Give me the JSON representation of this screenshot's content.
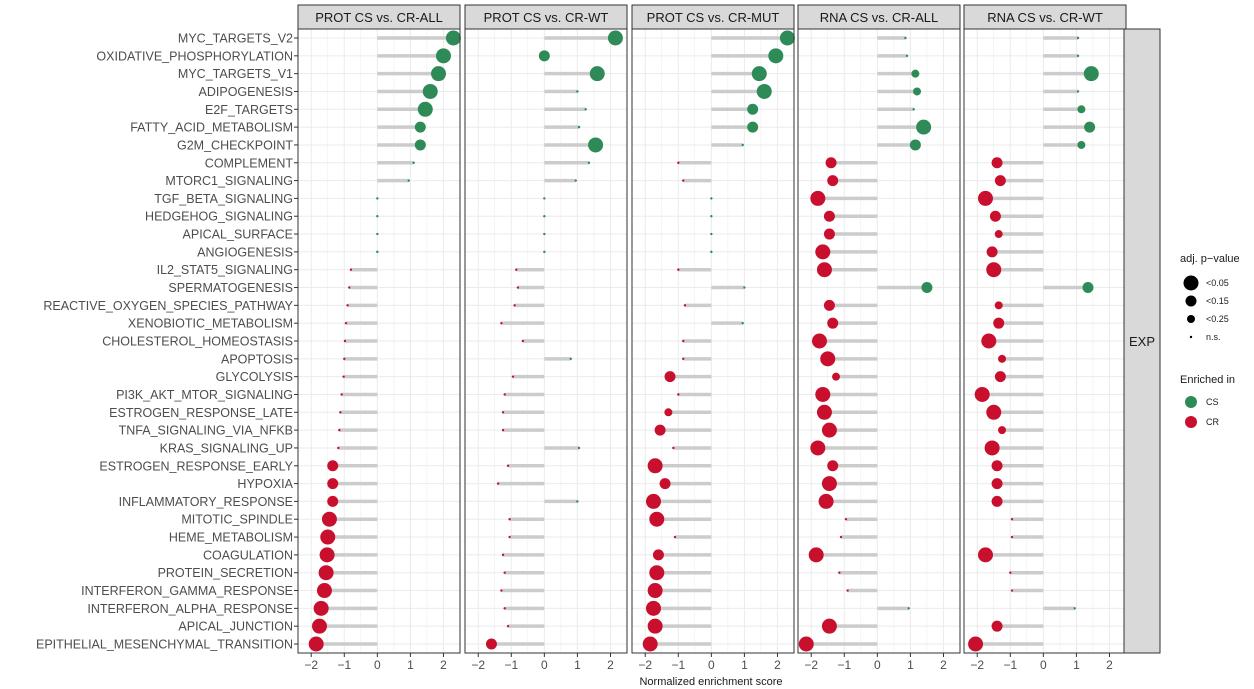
{
  "chart_data": {
    "type": "lollipop",
    "xlabel": "Normalized enrichment score",
    "xlim": [
      -2.4,
      2.5
    ],
    "xticks": [
      -2,
      -1,
      0,
      1,
      2
    ],
    "xtick_labels": [
      "−2",
      "−1",
      "0",
      "1",
      "2"
    ],
    "row_strip": "EXP",
    "grid": true,
    "legend_placement": "right",
    "legend": {
      "size_title": "adj. p−value",
      "size_levels": [
        "<0.05",
        "<0.15",
        "<0.25",
        "n.s."
      ],
      "color_title": "Enriched in",
      "color_levels": [
        {
          "label": "CS",
          "color": "#2e8b57"
        },
        {
          "label": "CR",
          "color": "#c8102e"
        }
      ]
    },
    "pathways": [
      "MYC_TARGETS_V2",
      "OXIDATIVE_PHOSPHORYLATION",
      "MYC_TARGETS_V1",
      "ADIPOGENESIS",
      "E2F_TARGETS",
      "FATTY_ACID_METABOLISM",
      "G2M_CHECKPOINT",
      "COMPLEMENT",
      "MTORC1_SIGNALING",
      "TGF_BETA_SIGNALING",
      "HEDGEHOG_SIGNALING",
      "APICAL_SURFACE",
      "ANGIOGENESIS",
      "IL2_STAT5_SIGNALING",
      "SPERMATOGENESIS",
      "REACTIVE_OXYGEN_SPECIES_PATHWAY",
      "XENOBIOTIC_METABOLISM",
      "CHOLESTEROL_HOMEOSTASIS",
      "APOPTOSIS",
      "GLYCOLYSIS",
      "PI3K_AKT_MTOR_SIGNALING",
      "ESTROGEN_RESPONSE_LATE",
      "TNFA_SIGNALING_VIA_NFKB",
      "KRAS_SIGNALING_UP",
      "ESTROGEN_RESPONSE_EARLY",
      "HYPOXIA",
      "INFLAMMATORY_RESPONSE",
      "MITOTIC_SPINDLE",
      "HEME_METABOLISM",
      "COAGULATION",
      "PROTEIN_SECRETION",
      "INTERFERON_GAMMA_RESPONSE",
      "INTERFERON_ALPHA_RESPONSE",
      "APICAL_JUNCTION",
      "EPITHELIAL_MESENCHYMAL_TRANSITION"
    ],
    "panels": [
      {
        "name": "PROT  CS vs. CR-ALL",
        "nes": [
          2.3,
          2.0,
          1.85,
          1.6,
          1.45,
          1.3,
          1.3,
          1.1,
          0.95,
          0,
          0,
          0,
          0,
          -0.8,
          -0.85,
          -0.9,
          -0.95,
          -0.98,
          -1.0,
          -1.02,
          -1.08,
          -1.12,
          -1.15,
          -1.18,
          -1.35,
          -1.35,
          -1.35,
          -1.45,
          -1.5,
          -1.52,
          -1.55,
          -1.6,
          -1.7,
          -1.75,
          -1.85
        ],
        "padj": [
          "<0.05",
          "<0.05",
          "<0.05",
          "<0.05",
          "<0.05",
          "<0.15",
          "<0.15",
          "n.s.",
          "n.s.",
          "n.s.",
          "n.s.",
          "n.s.",
          "n.s.",
          "n.s.",
          "n.s.",
          "n.s.",
          "n.s.",
          "n.s.",
          "n.s.",
          "n.s.",
          "n.s.",
          "n.s.",
          "n.s.",
          "n.s.",
          "<0.15",
          "<0.15",
          "<0.15",
          "<0.05",
          "<0.05",
          "<0.05",
          "<0.05",
          "<0.05",
          "<0.05",
          "<0.05",
          "<0.05"
        ]
      },
      {
        "name": "PROT  CS vs. CR-WT",
        "nes": [
          2.15,
          0,
          1.6,
          1.0,
          1.25,
          1.05,
          1.55,
          1.35,
          0.95,
          0,
          0,
          0,
          0,
          -0.85,
          -0.8,
          -0.9,
          -1.3,
          -0.65,
          0.8,
          -0.95,
          -1.2,
          -1.25,
          -1.25,
          1.05,
          -1.1,
          -1.4,
          1.0,
          -1.05,
          -1.05,
          -1.25,
          -1.2,
          -1.3,
          -1.2,
          -1.1,
          -1.6
        ],
        "padj": [
          "<0.05",
          "<0.15",
          "<0.05",
          "n.s.",
          "n.s.",
          "n.s.",
          "<0.05",
          "n.s.",
          "n.s.",
          "n.s.",
          "n.s.",
          "n.s.",
          "n.s.",
          "n.s.",
          "n.s.",
          "n.s.",
          "n.s.",
          "n.s.",
          "n.s.",
          "n.s.",
          "n.s.",
          "n.s.",
          "n.s.",
          "n.s.",
          "n.s.",
          "n.s.",
          "n.s.",
          "n.s.",
          "n.s.",
          "n.s.",
          "n.s.",
          "n.s.",
          "n.s.",
          "n.s.",
          "<0.15"
        ]
      },
      {
        "name": "PROT  CS vs. CR-MUT",
        "nes": [
          2.3,
          1.95,
          1.45,
          1.6,
          1.25,
          1.25,
          0.95,
          -1.0,
          -0.85,
          0,
          0,
          0,
          0,
          -1.0,
          1.0,
          -0.8,
          0.95,
          -0.85,
          -0.85,
          -1.25,
          -1.0,
          -1.3,
          -1.55,
          -1.15,
          -1.7,
          -1.4,
          -1.75,
          -1.65,
          -1.1,
          -1.6,
          -1.65,
          -1.7,
          -1.75,
          -1.7,
          -1.85
        ],
        "padj": [
          "<0.05",
          "<0.05",
          "<0.05",
          "<0.05",
          "<0.15",
          "<0.15",
          "n.s.",
          "n.s.",
          "n.s.",
          "n.s.",
          "n.s.",
          "n.s.",
          "n.s.",
          "n.s.",
          "n.s.",
          "n.s.",
          "n.s.",
          "n.s.",
          "n.s.",
          "<0.15",
          "n.s.",
          "<0.25",
          "<0.15",
          "n.s.",
          "<0.05",
          "<0.15",
          "<0.05",
          "<0.05",
          "n.s.",
          "<0.15",
          "<0.05",
          "<0.05",
          "<0.05",
          "<0.05",
          "<0.05"
        ]
      },
      {
        "name": "RNA  CS vs. CR-ALL",
        "nes": [
          0.85,
          0.9,
          1.15,
          1.2,
          1.1,
          1.4,
          1.15,
          -1.4,
          -1.35,
          -1.8,
          -1.45,
          -1.45,
          -1.65,
          -1.6,
          1.5,
          -1.45,
          -1.35,
          -1.75,
          -1.5,
          -1.25,
          -1.65,
          -1.6,
          -1.45,
          -1.8,
          -1.35,
          -1.45,
          -1.55,
          -0.95,
          -1.1,
          -1.85,
          -1.15,
          -0.9,
          0.95,
          -1.45,
          -2.15
        ],
        "padj": [
          "n.s.",
          "n.s.",
          "<0.25",
          "<0.25",
          "n.s.",
          "<0.05",
          "<0.15",
          "<0.15",
          "<0.15",
          "<0.05",
          "<0.15",
          "<0.15",
          "<0.05",
          "<0.05",
          "<0.15",
          "<0.15",
          "<0.15",
          "<0.05",
          "<0.05",
          "<0.25",
          "<0.05",
          "<0.05",
          "<0.05",
          "<0.05",
          "<0.15",
          "<0.05",
          "<0.05",
          "n.s.",
          "n.s.",
          "<0.05",
          "n.s.",
          "n.s.",
          "n.s.",
          "<0.05",
          "<0.05"
        ]
      },
      {
        "name": "RNA  CS vs. CR-WT",
        "nes": [
          1.05,
          1.05,
          1.45,
          1.05,
          1.15,
          1.4,
          1.15,
          -1.4,
          -1.3,
          -1.75,
          -1.45,
          -1.35,
          -1.55,
          -1.5,
          1.35,
          -1.35,
          -1.35,
          -1.65,
          -1.25,
          -1.3,
          -1.85,
          -1.5,
          -1.25,
          -1.55,
          -1.4,
          -1.4,
          -1.4,
          -0.95,
          -0.95,
          -1.75,
          -1.0,
          -0.95,
          0.95,
          -1.4,
          -2.05
        ],
        "padj": [
          "n.s.",
          "n.s.",
          "<0.05",
          "n.s.",
          "<0.25",
          "<0.15",
          "<0.25",
          "<0.15",
          "<0.15",
          "<0.05",
          "<0.15",
          "<0.25",
          "<0.15",
          "<0.05",
          "<0.15",
          "<0.25",
          "<0.15",
          "<0.05",
          "<0.25",
          "<0.15",
          "<0.05",
          "<0.05",
          "<0.25",
          "<0.05",
          "<0.15",
          "<0.15",
          "<0.15",
          "n.s.",
          "n.s.",
          "<0.05",
          "n.s.",
          "n.s.",
          "n.s.",
          "<0.15",
          "<0.05"
        ]
      }
    ]
  }
}
